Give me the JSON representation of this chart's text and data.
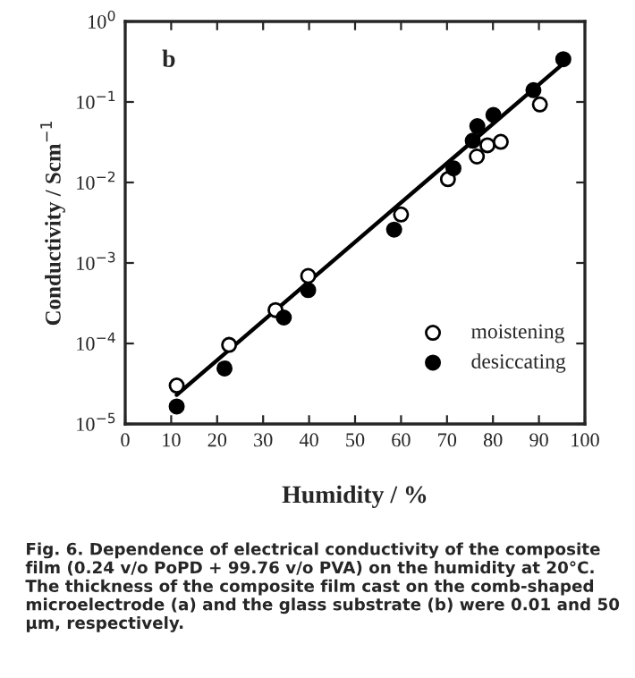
{
  "chart_data": {
    "type": "scatter",
    "xlabel": "Humidity / %",
    "ylabel": "Conductivity / Scm$^{−1}$",
    "annotations": [
      "b",
      "Fig. 6. Dependence of electrical conductivity of the composite film (0.24 v/o PoPD + 99.76 v/o PVA) on the humidity at 20°C. The thickness of the composite film cast on the comb-shaped microelectrode (a) and the glass substrate (b) were 0.01 and 50 µm, respectively."
    ],
    "series": [
      {
        "name": "moistening",
        "color": "#ffffff",
        "x": [
          11.2,
          22.6,
          32.7,
          39.8,
          60,
          70.2,
          76.5,
          78.8,
          81.7,
          90.2
        ],
        "values": [
          3e-05,
          9.6e-05,
          0.00026,
          0.00069,
          0.004,
          0.011,
          0.021,
          0.029,
          0.032,
          0.093
        ]
      },
      {
        "name": "desiccating",
        "color": "#000000",
        "x": [
          11.2,
          21.6,
          34.5,
          39.8,
          58.5,
          71.4,
          75.6,
          76.6,
          80.1,
          88.8,
          95.3
        ],
        "values": [
          1.65e-05,
          4.9e-05,
          0.00021,
          0.00046,
          0.0026,
          0.015,
          0.033,
          0.05,
          0.069,
          0.14,
          0.34
        ]
      },
      {
        "type": "line",
        "marker": "none",
        "color": "#000000",
        "x": [
          11.2,
          95
        ],
        "values": [
          2.3e-05,
          0.29
        ]
      }
    ],
    "log": "y",
    "marker": "circle",
    "legend": "lower right",
    "grid": false,
    "xlim": [
      0,
      100
    ],
    "xticks": [
      0,
      10,
      20,
      30,
      40,
      50,
      60,
      70,
      80,
      90,
      100
    ],
    "ylim": [
      1e-05,
      1
    ],
    "yticks": [
      {
        "value": 1e-05,
        "label": "10$^{−5}$"
      },
      {
        "value": 0.0001,
        "label": "10$^{−4}$"
      },
      {
        "value": 0.001,
        "label": "10$^{−3}$"
      },
      {
        "value": 0.01,
        "label": "10$^{−2}$"
      },
      {
        "value": 0.1,
        "label": "10$^{−1}$"
      },
      {
        "value": 1,
        "label": "10$^{0}$"
      }
    ]
  }
}
